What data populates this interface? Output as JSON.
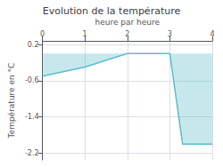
{
  "chart_data": {
    "type": "line",
    "title": "Evolution de la température",
    "xlabel": "heure par heure",
    "ylabel": "Température en °C",
    "x": [
      0,
      1,
      2,
      2,
      3,
      3.3,
      4
    ],
    "values": [
      -0.5,
      -0.3,
      0.0,
      0.0,
      0.0,
      -2.0,
      -2.0
    ],
    "color": "#5bbccc",
    "xlim": [
      0,
      4
    ],
    "xticks": [
      0,
      1,
      2,
      3,
      4
    ],
    "ylim": [
      -2.35,
      0.28
    ],
    "yticks": [
      0.2,
      -0.6,
      -1.4,
      -2.2
    ],
    "grid": true
  }
}
